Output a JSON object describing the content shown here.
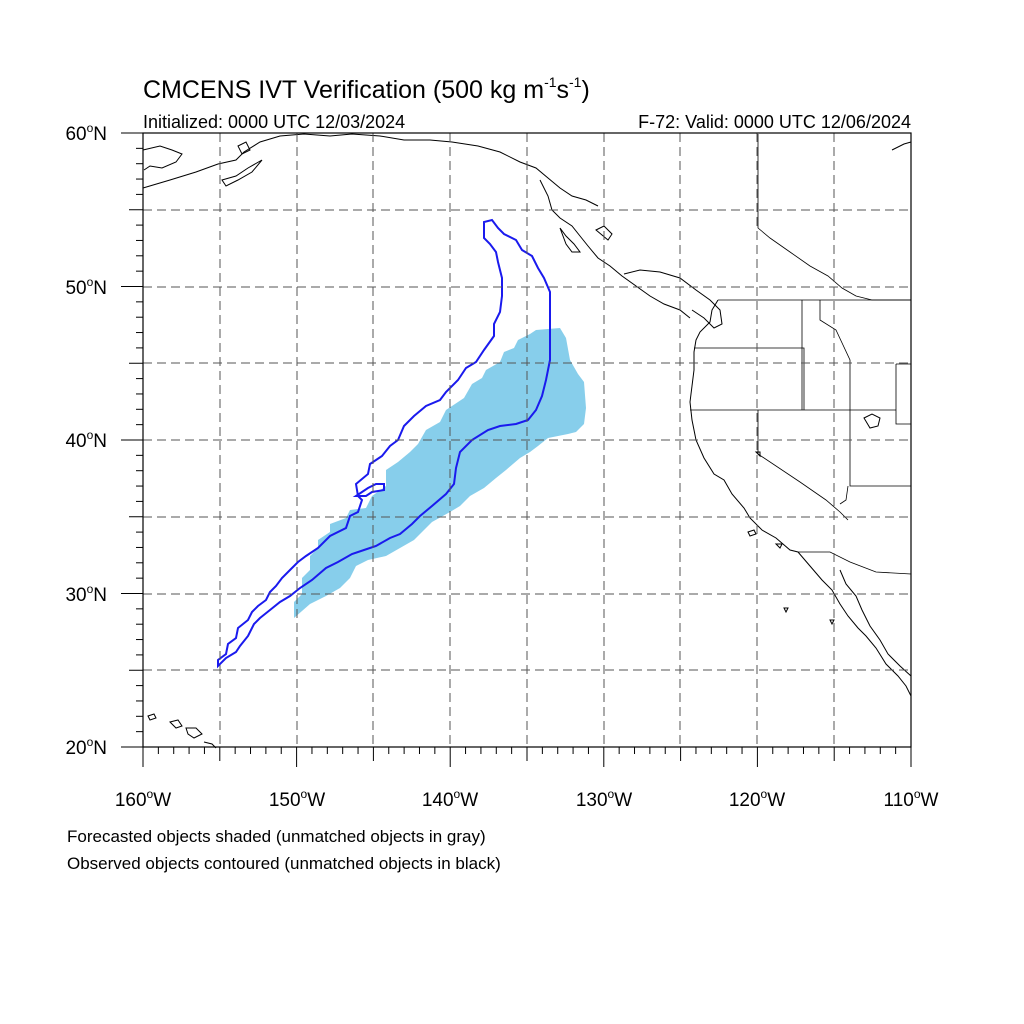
{
  "header": {
    "title": "CMCENS IVT Verification (500 kg m",
    "title_exp1": "-1",
    "title_mid": "s",
    "title_exp2": "-1",
    "title_end": ")",
    "initialized": "Initialized: 0000 UTC 12/03/2024",
    "valid": "F-72: Valid: 0000 UTC 12/06/2024"
  },
  "map": {
    "lon_min": -160,
    "lon_max": -110,
    "lat_min": 20,
    "lat_max": 60,
    "lat_labels": [
      "60",
      "50",
      "40",
      "30",
      "20"
    ],
    "lon_labels": [
      "160",
      "150",
      "140",
      "130",
      "120",
      "110"
    ],
    "lat_suffix": "N",
    "lon_suffix": "W",
    "degree": "o",
    "colors": {
      "forecast_fill": "#87ceeb",
      "observed_contour": "#1a1aee",
      "coastline": "#000000",
      "grid": "#555555"
    }
  },
  "footer": {
    "line1": "Forecasted objects shaded (unmatched objects in gray)",
    "line2": "Observed objects contoured (unmatched objects in black)"
  }
}
